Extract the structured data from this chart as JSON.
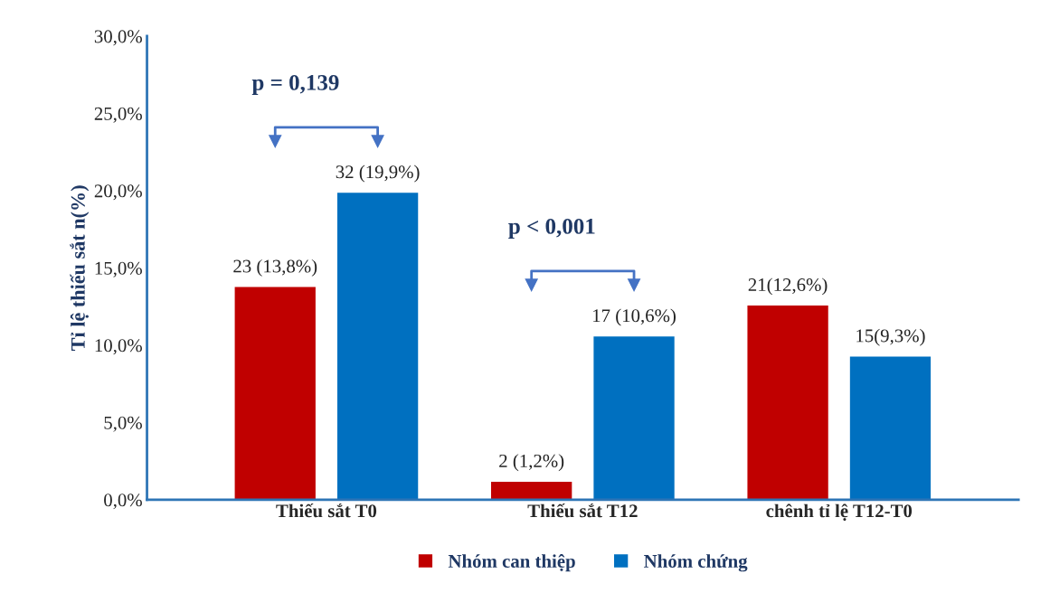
{
  "chart_data": {
    "type": "bar",
    "ylabel": "Tỉ lệ thiếu sắt n(%)",
    "categories": [
      "Thiếu sắt T0",
      "Thiếu sắt T12",
      "chênh tỉ lệ T12-T0"
    ],
    "series": [
      {
        "name": "Nhóm can thiệp",
        "color": "#c00000",
        "values": [
          13.8,
          1.2,
          12.6
        ],
        "value_labels": [
          "23 (13,8%)",
          "2 (1,2%)",
          "21(12,6%)"
        ]
      },
      {
        "name": "Nhóm chứng",
        "color": "#0070c0",
        "values": [
          19.9,
          10.6,
          9.3
        ],
        "value_labels": [
          "32 (19,9%)",
          "17 (10,6%)",
          "15(9,3%)"
        ]
      }
    ],
    "ylim": [
      0,
      30
    ],
    "yticks": [
      {
        "value": 0,
        "label": "0,0%"
      },
      {
        "value": 5,
        "label": "5,0%"
      },
      {
        "value": 10,
        "label": "10,0%"
      },
      {
        "value": 15,
        "label": "15,0%"
      },
      {
        "value": 20,
        "label": "20,0%"
      },
      {
        "value": 25,
        "label": "25,0%"
      },
      {
        "value": 30,
        "label": "30,0%"
      }
    ],
    "annotations": [
      "p = 0,139",
      "p < 0,001"
    ],
    "grid": false,
    "legend": "bottom"
  }
}
